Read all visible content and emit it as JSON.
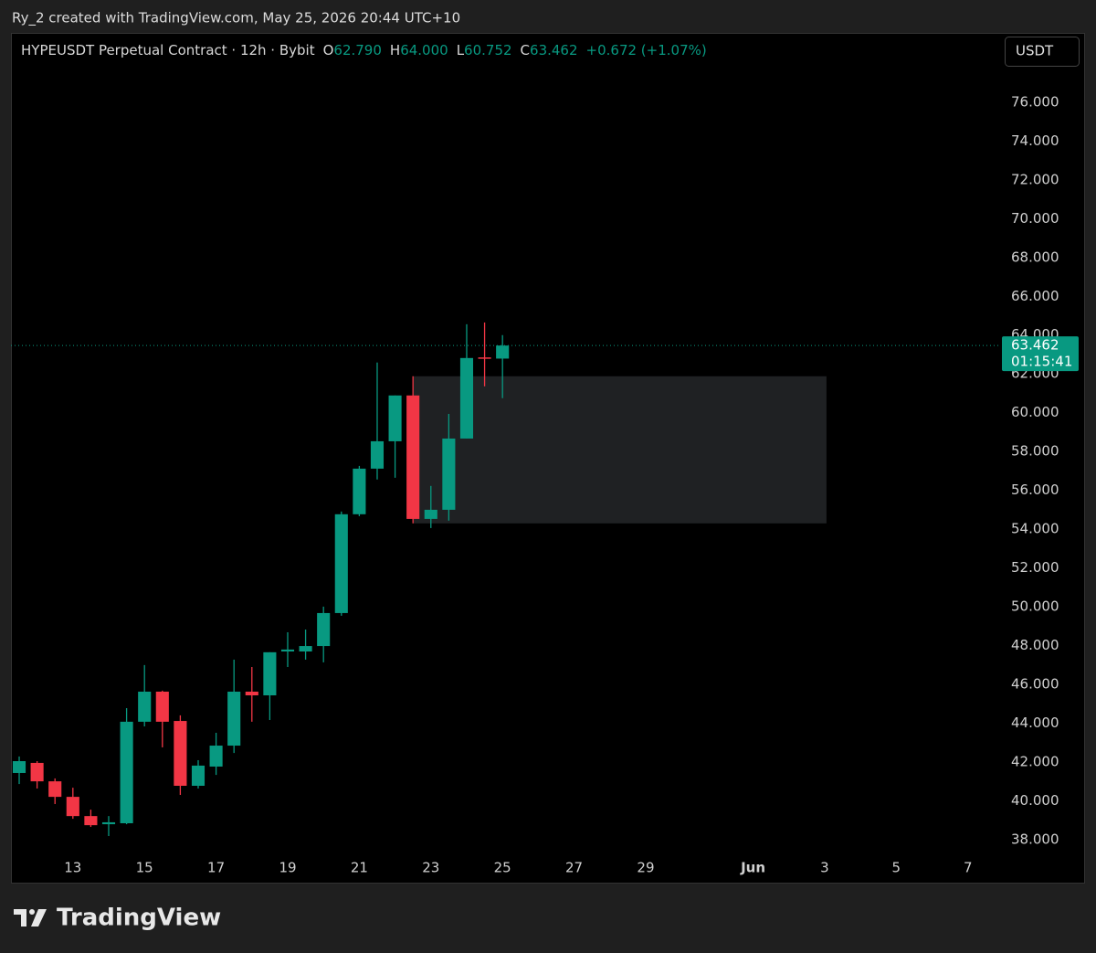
{
  "header": "Ry_2 created with TradingView.com, May 25, 2026 20:44 UTC+10",
  "branding": "TradingView",
  "currency_button": "USDT",
  "chart_data": {
    "type": "candlestick",
    "legend": {
      "symbol": "HYPEUSDT Perpetual Contract · 12h · Bybit",
      "fields": [
        {
          "key": "O",
          "value": "62.790"
        },
        {
          "key": "H",
          "value": "64.000"
        },
        {
          "key": "L",
          "value": "60.752"
        },
        {
          "key": "C",
          "value": "63.462"
        }
      ],
      "change": "+0.672 (+1.07%)"
    },
    "up_color": "#089981",
    "down_color": "#f23645",
    "x": [
      11.5,
      12,
      12.5,
      13,
      13.5,
      14,
      14.5,
      15,
      15.5,
      16,
      16.5,
      17,
      17.5,
      18,
      18.5,
      19,
      19.5,
      20,
      20.5,
      21,
      21.5,
      22,
      22.5,
      23,
      23.5,
      24,
      24.5,
      25
    ],
    "open": [
      41.44,
      41.96,
      41.01,
      40.21,
      39.22,
      38.8,
      38.85,
      44.08,
      45.63,
      44.12,
      40.78,
      41.77,
      42.85,
      45.63,
      45.44,
      47.7,
      47.7,
      47.98,
      49.68,
      54.77,
      57.12,
      58.53,
      60.89,
      54.53,
      55.0,
      58.67,
      62.85,
      62.79
    ],
    "high": [
      42.29,
      42.05,
      41.16,
      40.68,
      39.55,
      39.22,
      44.78,
      47.0,
      45.68,
      44.41,
      42.1,
      43.51,
      47.28,
      46.9,
      47.66,
      48.69,
      48.83,
      50.01,
      54.91,
      57.26,
      62.59,
      60.89,
      61.88,
      56.23,
      59.94,
      64.56,
      64.65,
      64.0
    ],
    "low": [
      40.87,
      40.64,
      39.84,
      39.08,
      38.66,
      38.19,
      38.8,
      43.84,
      42.76,
      40.31,
      40.64,
      41.34,
      42.47,
      44.08,
      44.17,
      46.9,
      47.28,
      47.14,
      49.54,
      54.67,
      56.56,
      56.65,
      54.3,
      54.06,
      54.44,
      58.67,
      61.36,
      60.752
    ],
    "close": [
      42.05,
      41.01,
      40.21,
      39.22,
      38.75,
      38.9,
      44.08,
      45.63,
      44.08,
      40.78,
      41.82,
      42.85,
      45.63,
      45.44,
      47.66,
      47.8,
      47.98,
      49.68,
      54.77,
      57.12,
      58.53,
      60.89,
      54.53,
      55.0,
      58.67,
      62.82,
      62.79,
      63.462
    ],
    "zone": {
      "x0": 22.5,
      "x1": 34.05,
      "y0": 54.3,
      "y1": 61.88
    },
    "last_price": {
      "value": 63.462,
      "label": "63.462"
    },
    "countdown": "01:15:41",
    "xlim": [
      11.27,
      38.9
    ],
    "ylim": [
      35.79,
      79.57
    ],
    "xticks": [
      13,
      15,
      17,
      19,
      21,
      23,
      25,
      27,
      29,
      {
        "value": 32,
        "label": "Jun"
      },
      {
        "value": 34,
        "label": "3"
      },
      {
        "value": 36,
        "label": "5"
      },
      {
        "value": 38,
        "label": "7"
      }
    ],
    "yticks": [
      {
        "value": 38,
        "label": "38.000"
      },
      {
        "value": 40,
        "label": "40.000"
      },
      {
        "value": 42,
        "label": "42.000"
      },
      {
        "value": 44,
        "label": "44.000"
      },
      {
        "value": 46,
        "label": "46.000"
      },
      {
        "value": 48,
        "label": "48.000"
      },
      {
        "value": 50,
        "label": "50.000"
      },
      {
        "value": 52,
        "label": "52.000"
      },
      {
        "value": 54,
        "label": "54.000"
      },
      {
        "value": 56,
        "label": "56.000"
      },
      {
        "value": 58,
        "label": "58.000"
      },
      {
        "value": 60,
        "label": "60.000"
      },
      {
        "value": 62,
        "label": "62.000"
      },
      {
        "value": 64,
        "label": "64.000"
      },
      {
        "value": 66,
        "label": "66.000"
      },
      {
        "value": 68,
        "label": "68.000"
      },
      {
        "value": 70,
        "label": "70.000"
      },
      {
        "value": 72,
        "label": "72.000"
      },
      {
        "value": 74,
        "label": "74.000"
      },
      {
        "value": 76,
        "label": "76.000"
      }
    ]
  }
}
